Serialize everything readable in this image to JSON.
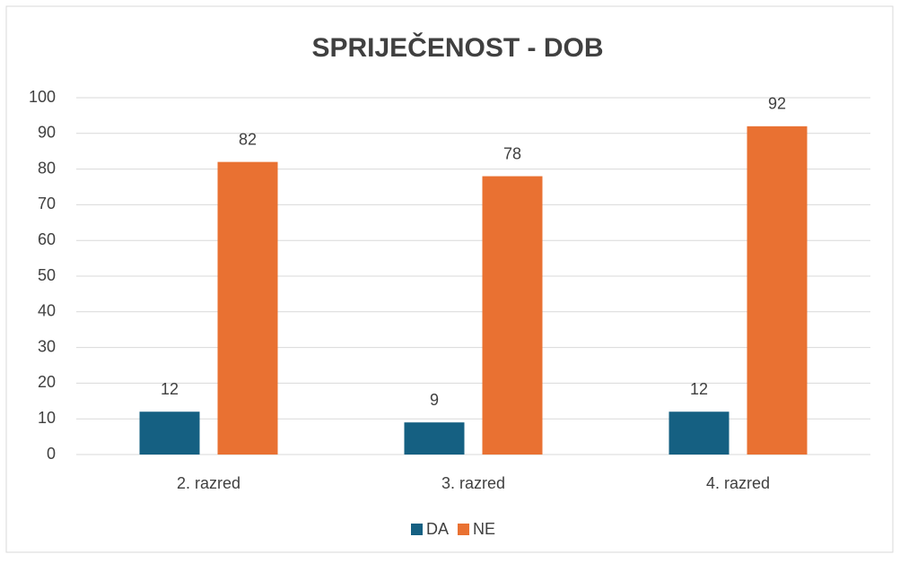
{
  "chart_data": {
    "type": "bar",
    "title": "SPRIJEČENOST - DOB",
    "categories": [
      "2. razred",
      "3. razred",
      "4. razred"
    ],
    "series": [
      {
        "name": "DA",
        "color": "#156082",
        "values": [
          12,
          9,
          12
        ]
      },
      {
        "name": "NE",
        "color": "#e97132",
        "values": [
          82,
          78,
          92
        ]
      }
    ],
    "ylim": [
      0,
      100
    ],
    "yticks": [
      0,
      10,
      20,
      30,
      40,
      50,
      60,
      70,
      80,
      90,
      100
    ],
    "grid": true,
    "legend": "bottom"
  }
}
